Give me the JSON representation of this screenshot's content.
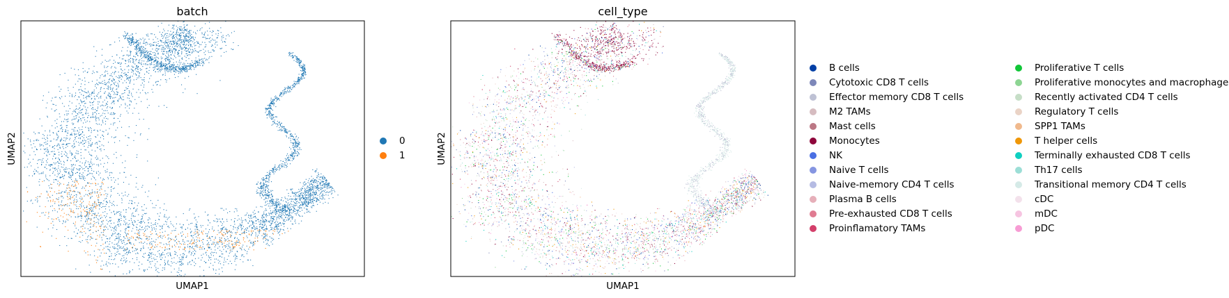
{
  "chart_data": [
    {
      "type": "scatter",
      "title": "batch",
      "xlabel": "UMAP1",
      "ylabel": "UMAP2",
      "grid": false,
      "legend_placement": "right",
      "series": [
        {
          "name": "0",
          "color": "#1f77b4"
        },
        {
          "name": "1",
          "color": "#ff7f0e"
        }
      ]
    },
    {
      "type": "scatter",
      "title": "cell_type",
      "xlabel": "UMAP1",
      "ylabel": "UMAP2",
      "grid": false,
      "legend_placement": "right",
      "series": [
        {
          "name": "B cells",
          "color": "#023fa5"
        },
        {
          "name": "Cytotoxic CD8 T cells",
          "color": "#7d87b9"
        },
        {
          "name": "Effector memory CD8 T cells",
          "color": "#bec1d4"
        },
        {
          "name": "M2 TAMs",
          "color": "#d6bcc0"
        },
        {
          "name": "Mast cells",
          "color": "#bb7784"
        },
        {
          "name": "Monocytes",
          "color": "#8e063b"
        },
        {
          "name": "NK",
          "color": "#4a6fe3"
        },
        {
          "name": "Naive T cells",
          "color": "#8595e1"
        },
        {
          "name": "Naive-memory CD4 T cells",
          "color": "#b5bbe3"
        },
        {
          "name": "Plasma B cells",
          "color": "#e6afb9"
        },
        {
          "name": "Pre-exhausted CD8 T cells",
          "color": "#e07b91"
        },
        {
          "name": "Proinflamatory TAMs",
          "color": "#d33f6a"
        },
        {
          "name": "Proliferative T cells",
          "color": "#11c638"
        },
        {
          "name": "Proliferative monocytes and macrophages",
          "color": "#8dd593"
        },
        {
          "name": "Recently activated CD4 T cells",
          "color": "#c6dec7"
        },
        {
          "name": "Regulatory T cells",
          "color": "#ead3c6"
        },
        {
          "name": "SPP1 TAMs",
          "color": "#f0b98d"
        },
        {
          "name": "T helper cells",
          "color": "#ef9708"
        },
        {
          "name": "Terminally exhausted CD8 T cells",
          "color": "#0fcfc0"
        },
        {
          "name": "Th17 cells",
          "color": "#9cded6"
        },
        {
          "name": "Transitional memory CD4 T cells",
          "color": "#d5eae7"
        },
        {
          "name": "cDC",
          "color": "#f3e1eb"
        },
        {
          "name": "mDC",
          "color": "#f6c4e1"
        },
        {
          "name": "pDC",
          "color": "#f79cd4"
        }
      ]
    }
  ]
}
